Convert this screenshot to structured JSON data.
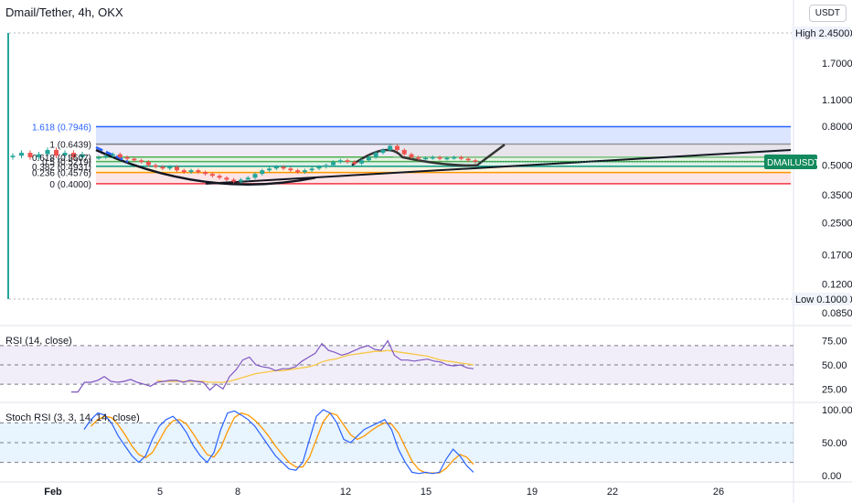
{
  "header": {
    "symbol_line": "Dmail/Tether, 4h, OKX",
    "currency_button": "USDT"
  },
  "colors": {
    "up": "#26a69a",
    "down": "#ef5350",
    "ticker_tag": "#138a5e",
    "fib_top": "#2962ff",
    "rsi_line": "#7e57c2",
    "rsi_ma": "#f7c744",
    "stoch_k": "#2962ff",
    "stoch_d": "#ff9800"
  },
  "chart_data": [
    {
      "type": "candlestick",
      "title": "Dmail/Tether, 4h, OKX",
      "scale": "log",
      "price_axis_labels": [
        "2.4500",
        "1.7000",
        "1.1000",
        "0.8000",
        "0.5000",
        "0.3500",
        "0.2500",
        "0.1700",
        "0.1200",
        "0.1000",
        "0.0850"
      ],
      "high_label": "High",
      "high_value": "2.4500",
      "low_label": "Low",
      "low_value": "0.1000",
      "ticker_tag": "DMAILUSDT",
      "time_axis_labels": [
        "Feb",
        "5",
        "8",
        "12",
        "15",
        "19",
        "22",
        "26"
      ],
      "fib_levels": [
        {
          "label": "1.618 (0.7946)",
          "price": 0.7946,
          "color": "#2962ff"
        },
        {
          "label": "1 (0.6439)",
          "price": 0.6439,
          "color": "#787b86"
        },
        {
          "label": "0.618 (0.5507)",
          "price": 0.5507,
          "color": "#4caf50"
        },
        {
          "label": "0.5 (0.5219)",
          "price": 0.5219,
          "color": "#4caf50"
        },
        {
          "label": "0.382 (0.4931)",
          "price": 0.4931,
          "color": "#089981"
        },
        {
          "label": "0.236 (0.4576)",
          "price": 0.4576,
          "color": "#ff9800"
        },
        {
          "label": "0 (0.4000)",
          "price": 0.4,
          "color": "#f23645"
        }
      ],
      "closes": [
        0.55,
        0.56,
        0.57,
        0.55,
        0.54,
        0.53,
        0.52,
        0.5,
        0.49,
        0.48,
        0.49,
        0.47,
        0.46,
        0.47,
        0.46,
        0.45,
        0.44,
        0.43,
        0.42,
        0.41,
        0.42,
        0.43,
        0.45,
        0.47,
        0.48,
        0.49,
        0.48,
        0.47,
        0.46,
        0.47,
        0.48,
        0.49,
        0.5,
        0.52,
        0.53,
        0.52,
        0.51,
        0.53,
        0.55,
        0.58,
        0.6,
        0.63,
        0.6,
        0.57,
        0.55,
        0.54,
        0.545,
        0.55,
        0.54,
        0.545,
        0.55,
        0.54,
        0.53,
        0.52
      ]
    },
    {
      "type": "line",
      "title": "RSI (14, close)",
      "axis_labels": [
        "75.00",
        "50.00",
        "25.00"
      ],
      "rsi": [
        22,
        22,
        32,
        32,
        34,
        38,
        33,
        32,
        33,
        35,
        32,
        30,
        28,
        32,
        33,
        34,
        34,
        32,
        34,
        33,
        32,
        24,
        30,
        25,
        38,
        45,
        55,
        58,
        50,
        48,
        47,
        44,
        46,
        46,
        48,
        54,
        58,
        62,
        72,
        65,
        63,
        60,
        62,
        65,
        68,
        70,
        66,
        65,
        75,
        60,
        55,
        55,
        54,
        55,
        56,
        54,
        53,
        50,
        49,
        50,
        47,
        46
      ],
      "ma": [
        null,
        null,
        null,
        null,
        null,
        null,
        null,
        null,
        null,
        null,
        null,
        null,
        null,
        34,
        33,
        33,
        33,
        33,
        33,
        33,
        33,
        32,
        32,
        32,
        33,
        35,
        37,
        39,
        41,
        42,
        43,
        44,
        44,
        45,
        46,
        47,
        48,
        50,
        53,
        55,
        56,
        58,
        60,
        61,
        62,
        63,
        64,
        64,
        65,
        64,
        63,
        62,
        61,
        60,
        59,
        57,
        55,
        54,
        53,
        52,
        51,
        50
      ]
    },
    {
      "type": "line",
      "title": "Stoch RSI (3, 3, 14, 14, close)",
      "axis_labels": [
        "100.00",
        "50.00",
        "0.00"
      ],
      "k": [
        70,
        85,
        95,
        92,
        80,
        60,
        45,
        30,
        20,
        30,
        55,
        75,
        85,
        90,
        80,
        65,
        45,
        30,
        20,
        35,
        70,
        95,
        98,
        92,
        85,
        75,
        60,
        45,
        30,
        20,
        10,
        8,
        20,
        55,
        90,
        100,
        95,
        80,
        55,
        50,
        60,
        70,
        75,
        80,
        85,
        70,
        40,
        20,
        5,
        3,
        5,
        3,
        5,
        25,
        40,
        30,
        15,
        5
      ],
      "d": [
        null,
        75,
        85,
        90,
        88,
        77,
        62,
        45,
        32,
        27,
        35,
        53,
        72,
        83,
        85,
        78,
        63,
        47,
        32,
        28,
        42,
        67,
        88,
        95,
        92,
        84,
        73,
        60,
        45,
        32,
        20,
        13,
        13,
        28,
        55,
        82,
        95,
        92,
        77,
        62,
        55,
        60,
        68,
        75,
        80,
        78,
        65,
        43,
        22,
        9,
        4,
        4,
        4,
        11,
        23,
        32,
        28,
        17
      ]
    }
  ]
}
